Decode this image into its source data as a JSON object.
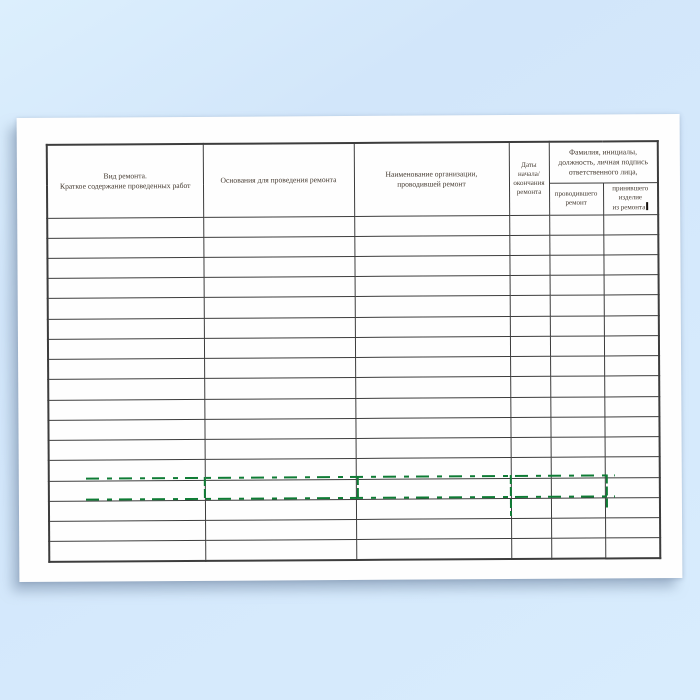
{
  "colors": {
    "background": "#d5e9fc",
    "page": "#fefefe",
    "table_border": "#3d3d3d",
    "header_text": "#43392f",
    "highlight_green": "#0f7c35"
  },
  "document": {
    "kind": "repair-log-form",
    "table": {
      "headers": {
        "repair_type": {
          "lines": [
            "Вид ремонта.",
            "Краткое содержание проведенных работ"
          ]
        },
        "grounds": {
          "lines": [
            "Основания для проведения ремонта"
          ]
        },
        "organization": {
          "lines": [
            "Наименование организации,",
            "проводившей ремонт"
          ]
        },
        "dates": {
          "lines": [
            "Даты",
            "начала/",
            "окончания",
            "ремонта"
          ]
        },
        "responsible_person_group": {
          "lines": [
            "Фамилия, инициалы,",
            "должность, личная подпись",
            "ответственного лица,"
          ]
        },
        "repair_performed_by": {
          "lines": [
            "проводившего",
            "ремонт"
          ]
        },
        "accepted_from_repair_by": {
          "lines": [
            "принявшего",
            "изделие",
            "из ремонта"
          ]
        }
      },
      "empty_row_count": 17,
      "column_count": 6
    }
  }
}
